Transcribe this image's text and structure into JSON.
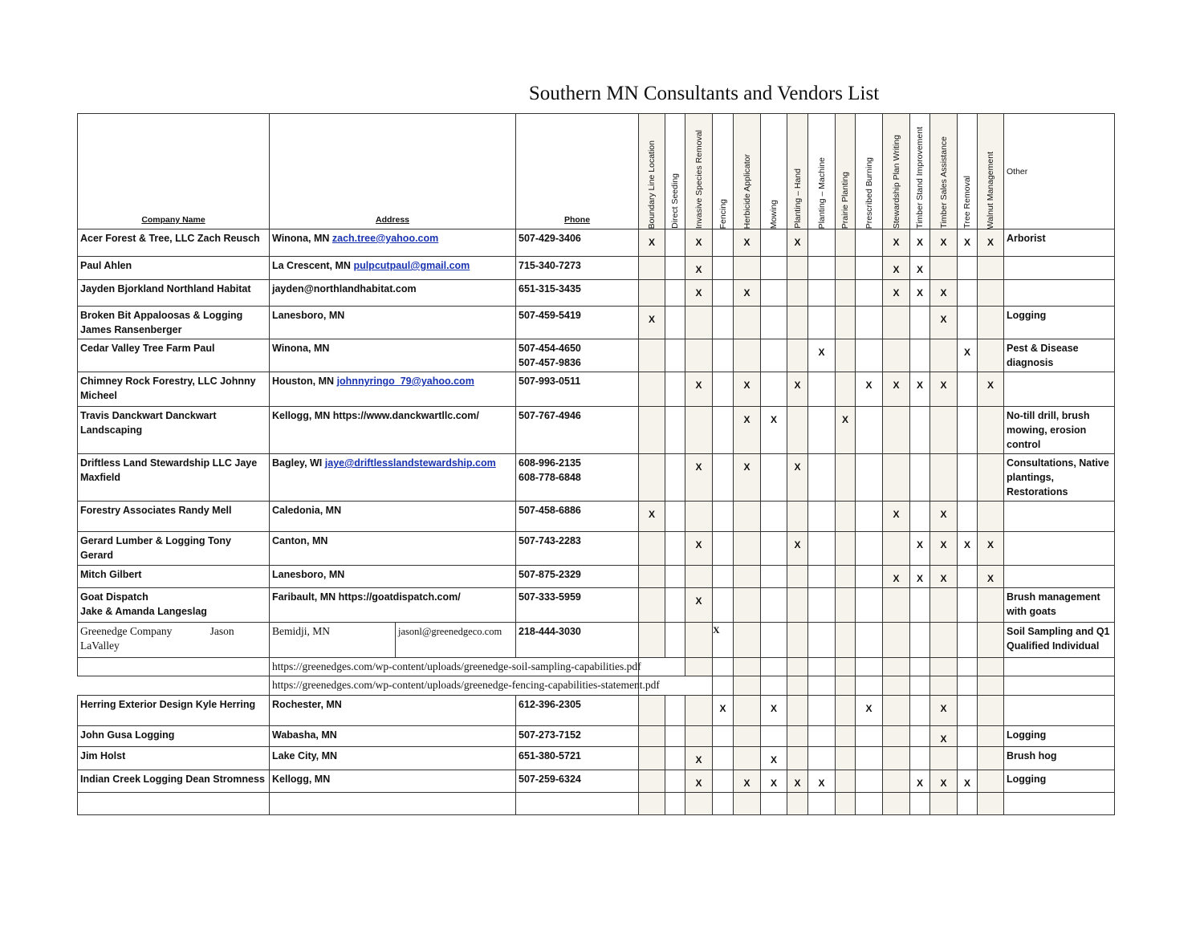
{
  "title": "Southern MN Consultants and Vendors List",
  "columns": {
    "company": "Company Name",
    "address": "Address",
    "phone": "Phone",
    "services": [
      "Boundary Line Location",
      "Direct Seeding",
      "Invasive Species  Removal",
      "Fencing",
      "Herbicide Applicator",
      "Mowing",
      "Planting – Hand",
      "Planting – Machine",
      "Prairie Planting",
      "Prescribed Burning",
      "Stewardship Plan Writing",
      "Timber Stand Improvement",
      "Timber Sales Assistance",
      "Tree Removal",
      "Walnut Management"
    ],
    "other": "Other"
  },
  "shade_color": "#f6f3ec",
  "link_color": "#1a33b0",
  "rows": [
    {
      "company": "Acer Forest & Tree, LLC Zach Reusch",
      "location": "Winona, MN",
      "email": "zach.tree@yahoo.com",
      "phone": "507-429-3406",
      "marks": [
        "X",
        "",
        "X",
        "",
        "X",
        "",
        "X",
        "",
        "",
        "",
        "X",
        "X",
        "X",
        "X",
        "X"
      ],
      "other": "Arborist"
    },
    {
      "company": "Paul Ahlen",
      "location": "La Crescent, MN",
      "email": "pulpcutpaul@gmail.com",
      "phone": "715-340-7273",
      "marks": [
        "",
        "",
        "X",
        "",
        "",
        "",
        "",
        "",
        "",
        "",
        "X",
        "X",
        "",
        "",
        ""
      ],
      "other": ""
    },
    {
      "company": "Jayden Bjorkland Northland Habitat",
      "location": "jayden@northlandhabitat.com",
      "email": "",
      "phone": "651-315-3435",
      "marks": [
        "",
        "",
        "X",
        "",
        "X",
        "",
        "",
        "",
        "",
        "",
        "X",
        "X",
        "X",
        "",
        ""
      ],
      "other": ""
    },
    {
      "company": "Broken Bit Appaloosas & Logging James Ransenberger",
      "location": "Lanesboro, MN",
      "email": "",
      "phone": "507-459-5419",
      "marks": [
        "X",
        "",
        "",
        "",
        "",
        "",
        "",
        "",
        "",
        "",
        "",
        "",
        "X",
        "",
        ""
      ],
      "other": "Logging"
    },
    {
      "company": "Cedar Valley Tree Farm Paul",
      "location": "Winona, MN",
      "email": "",
      "phone": "507-454-4650\n507-457-9836",
      "marks": [
        "",
        "",
        "",
        "",
        "",
        "",
        "",
        "X",
        "",
        "",
        "",
        "",
        "",
        "X",
        ""
      ],
      "other": "Pest & Disease diagnosis"
    },
    {
      "company": "Chimney Rock Forestry, LLC Johnny Micheel",
      "location": "Houston, MN",
      "email": "johnnyringo_79@yahoo.com",
      "phone": "507-993-0511",
      "marks": [
        "",
        "",
        "X",
        "",
        "X",
        "",
        "X",
        "",
        "",
        "X",
        "X",
        "X",
        "X",
        "",
        "X"
      ],
      "other": ""
    },
    {
      "company": "Travis Danckwart Danckwart Landscaping",
      "location": "Kellogg, MN https://www.danckwartllc.com/",
      "email": "",
      "phone": "507-767-4946",
      "marks": [
        "",
        "",
        "",
        "",
        "X",
        "X",
        "",
        "",
        "X",
        "",
        "",
        "",
        "",
        "",
        ""
      ],
      "other": "No-till drill, brush mowing, erosion control"
    },
    {
      "company": "Driftless Land Stewardship LLC Jaye Maxfield",
      "location": "Bagley, WI",
      "email": "jaye@driftlesslandstewardship.com",
      "phone": "608-996-2135\n608-778-6848",
      "marks": [
        "",
        "",
        "X",
        "",
        "X",
        "",
        "X",
        "",
        "",
        "",
        "",
        "",
        "",
        "",
        ""
      ],
      "other": "Consultations, Native plantings, Restorations"
    },
    {
      "company": "Forestry Associates Randy Mell",
      "location": "Caledonia, MN",
      "email": "",
      "phone": "507-458-6886",
      "marks": [
        "X",
        "",
        "",
        "",
        "",
        "",
        "",
        "",
        "",
        "",
        "X",
        "",
        "X",
        "",
        ""
      ],
      "other": ""
    },
    {
      "company": "Gerard Lumber & Logging Tony Gerard",
      "location": "Canton, MN",
      "email": "",
      "phone": "507-743-2283",
      "marks": [
        "",
        "",
        "X",
        "",
        "",
        "",
        "X",
        "",
        "",
        "",
        "",
        "X",
        "X",
        "X",
        "X"
      ],
      "other": ""
    },
    {
      "company": "Mitch Gilbert",
      "location": "Lanesboro, MN",
      "email": "",
      "phone": "507-875-2329",
      "marks": [
        "",
        "",
        "",
        "",
        "",
        "",
        "",
        "",
        "",
        "",
        "X",
        "X",
        "X",
        "",
        "X"
      ],
      "other": ""
    },
    {
      "company": "Goat Dispatch\nJake & Amanda Langeslag",
      "location": "Faribault, MN https://goatdispatch.com/",
      "email": "",
      "phone": "507-333-5959",
      "marks": [
        "",
        "",
        "X",
        "",
        "",
        "",
        "",
        "",
        "",
        "",
        "",
        "",
        "",
        "",
        ""
      ],
      "other": "Brush management with goats"
    }
  ],
  "greenedge": {
    "company": "Greenedge Company              Jason LaValley",
    "location": "Bemidji, MN",
    "email": "jasonl@greenedgeco.com",
    "phone": "218-444-3030",
    "marks": [
      "",
      "",
      "",
      "X",
      "",
      "",
      "",
      "",
      "",
      "",
      "",
      "",
      "",
      "",
      ""
    ],
    "other": "Soil Sampling and Q1 Qualified Individual",
    "links": [
      "https://greenedges.com/wp-content/uploads/greenedge-soil-sampling-capabilities.pdf",
      "https://greenedges.com/wp-content/uploads/greenedge-fencing-capabilities-statement.pdf"
    ]
  },
  "rows2": [
    {
      "company": "Herring Exterior Design Kyle Herring",
      "location": "Rochester, MN",
      "email": "",
      "phone": "612-396-2305",
      "marks": [
        "",
        "",
        "",
        "X",
        "",
        "X",
        "",
        "",
        "",
        "X",
        "",
        "",
        "X",
        "",
        ""
      ],
      "other": ""
    },
    {
      "company": "John Gusa Logging",
      "location": "Wabasha, MN",
      "email": "",
      "phone": "507-273-7152",
      "marks": [
        "",
        "",
        "",
        "",
        "",
        "",
        "",
        "",
        "",
        "",
        "",
        "",
        "X",
        "",
        ""
      ],
      "other": "Logging"
    },
    {
      "company": "Jim Holst",
      "location": "Lake City, MN",
      "email": "",
      "phone": "651-380-5721",
      "marks": [
        "",
        "",
        "X",
        "",
        "",
        "X",
        "",
        "",
        "",
        "",
        "",
        "",
        "",
        "",
        ""
      ],
      "other": "Brush hog"
    },
    {
      "company": "Indian Creek Logging Dean Stromness",
      "location": "Kellogg, MN",
      "email": "",
      "phone": "507-259-6324",
      "marks": [
        "",
        "",
        "X",
        "",
        "X",
        "X",
        "X",
        "X",
        "",
        "",
        "",
        "X",
        "X",
        "X",
        ""
      ],
      "other": "Logging"
    }
  ]
}
